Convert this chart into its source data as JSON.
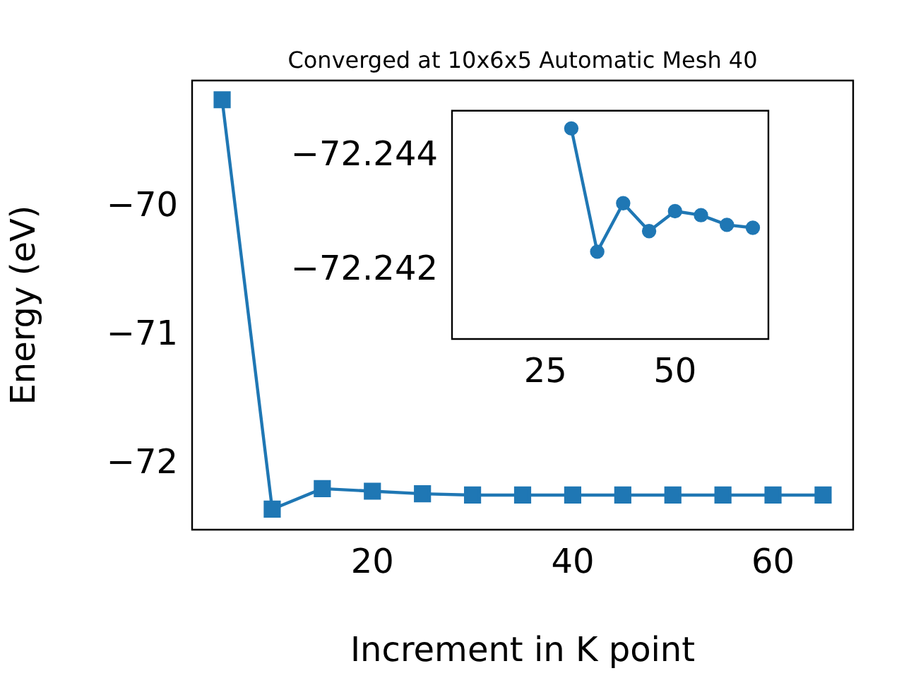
{
  "chart_data": [
    {
      "type": "line",
      "title": "Converged at 10x6x5 Automatic Mesh 40",
      "xlabel": "Increment in K point",
      "ylabel": "Energy (eV)",
      "marker": "square",
      "color": "#1f77b4",
      "x": [
        5,
        10,
        15,
        20,
        25,
        30,
        35,
        40,
        45,
        50,
        55,
        60,
        65
      ],
      "values": [
        -69.16,
        -72.35,
        -72.19,
        -72.21,
        -72.23,
        -72.24,
        -72.24,
        -72.24,
        -72.24,
        -72.24,
        -72.24,
        -72.24,
        -72.24
      ],
      "xlim": [
        2,
        68
      ],
      "ylim": [
        -72.51,
        -69.01
      ],
      "xticks": [
        20,
        40,
        60
      ],
      "yticks": [
        {
          "value": -70,
          "label": "−70"
        },
        {
          "value": -71,
          "label": "−71"
        },
        {
          "value": -72,
          "label": "−72"
        }
      ]
    },
    {
      "type": "line",
      "marker": "circle",
      "color": "#1f77b4",
      "x": [
        30,
        35,
        40,
        45,
        50,
        55,
        60,
        65
      ],
      "values": [
        -72.24449,
        -72.24233,
        -72.24318,
        -72.24269,
        -72.24304,
        -72.24297,
        -72.2428,
        -72.24275
      ],
      "xlim": [
        7,
        68
      ],
      "ylim": [
        -72.2408,
        -72.2448
      ],
      "xticks": [
        25,
        50
      ],
      "yticks": [
        {
          "value": -72.244,
          "label": "−72.244"
        },
        {
          "value": -72.242,
          "label": "−72.242"
        }
      ]
    }
  ]
}
